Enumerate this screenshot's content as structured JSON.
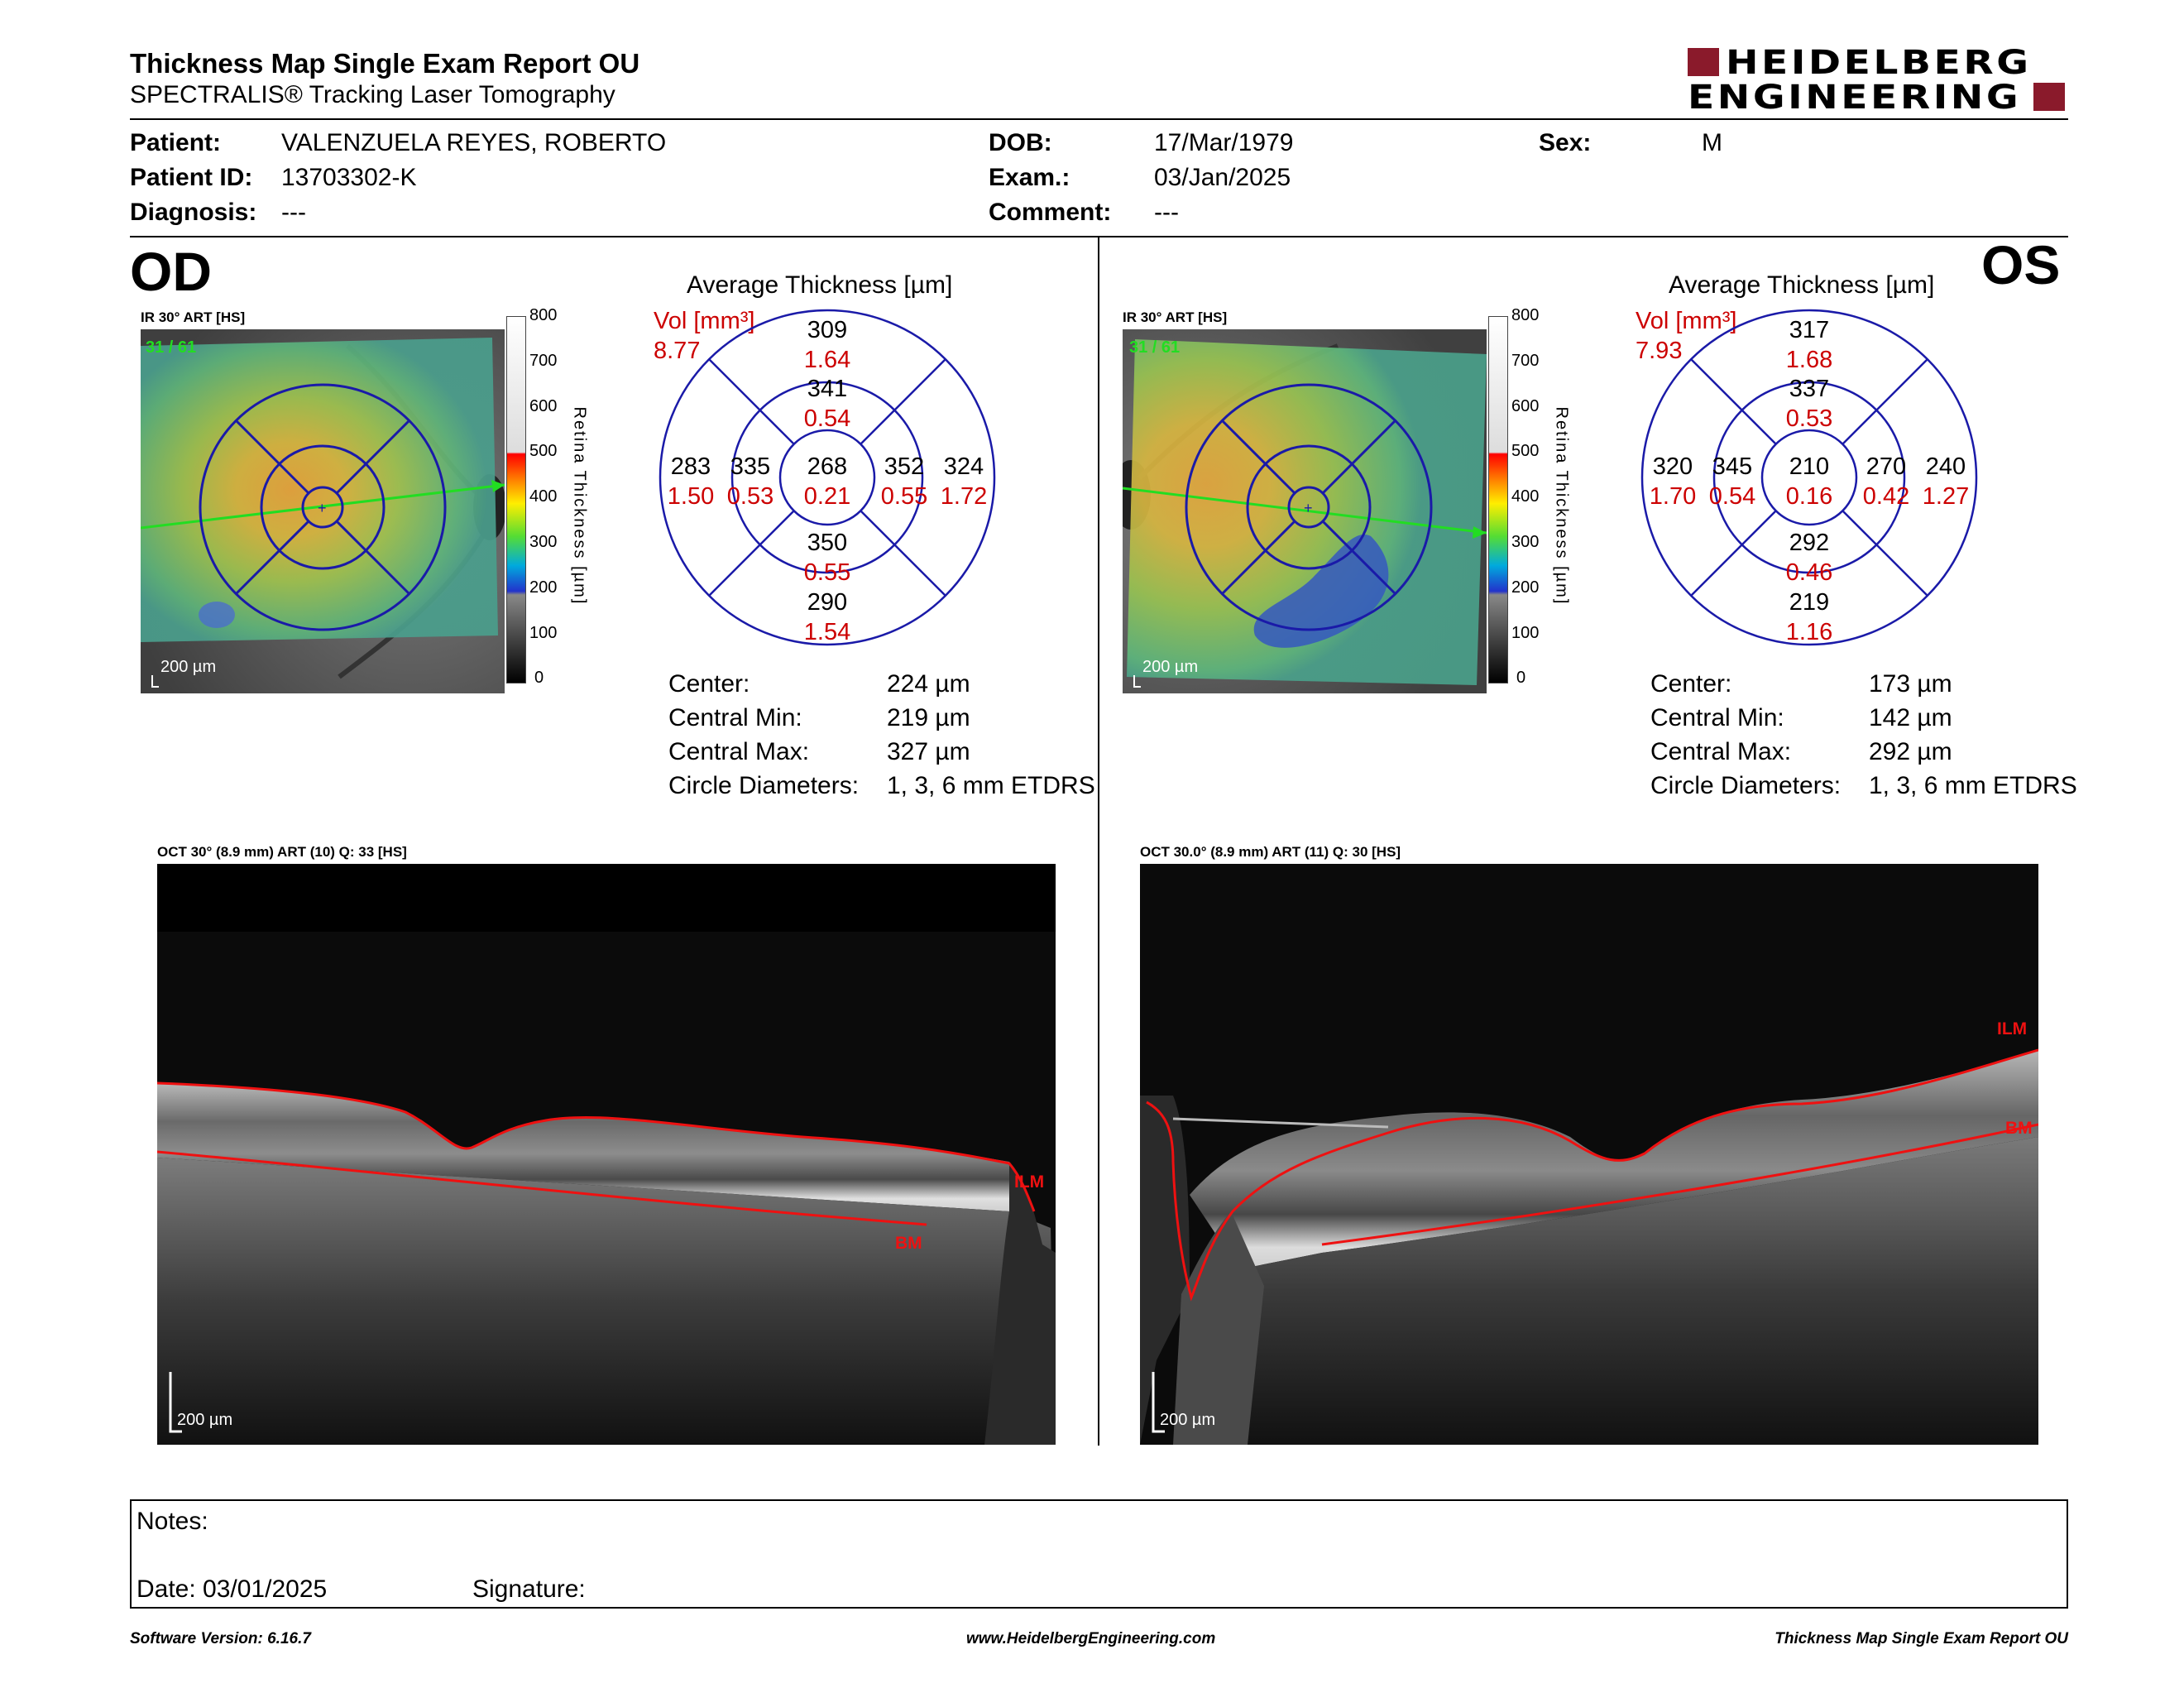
{
  "header": {
    "title": "Thickness Map Single Exam Report OU",
    "subtitle": "SPECTRALIS® Tracking Laser Tomography",
    "logo_line1": "HEIDELBERG",
    "logo_line2": "ENGINEERING"
  },
  "patient": {
    "patient_label": "Patient:",
    "patient_value": "VALENZUELA REYES, ROBERTO",
    "id_label": "Patient ID:",
    "id_value": "13703302-K",
    "diagnosis_label": "Diagnosis:",
    "diagnosis_value": "---",
    "dob_label": "DOB:",
    "dob_value": "17/Mar/1979",
    "exam_label": "Exam.:",
    "exam_value": "03/Jan/2025",
    "comment_label": "Comment:",
    "comment_value": "---",
    "sex_label": "Sex:",
    "sex_value": "M"
  },
  "colorbar": {
    "ticks": [
      "800",
      "700",
      "600",
      "500",
      "400",
      "300",
      "200",
      "100",
      "0"
    ],
    "title": "Retina Thickness [µm]"
  },
  "od": {
    "eye": "OD",
    "ir_label": "IR 30° ART [HS]",
    "ir_counter": "31 / 61",
    "ir_scale": "200 µm",
    "grid_title": "Average Thickness [µm]",
    "vol_label": "Vol [mm³]",
    "vol_total": "8.77",
    "sectors": {
      "outer_top": {
        "thickness": "309",
        "volume": "1.64"
      },
      "inner_top": {
        "thickness": "341",
        "volume": "0.54"
      },
      "outer_left": {
        "thickness": "283",
        "volume": "1.50"
      },
      "inner_left": {
        "thickness": "335",
        "volume": "0.53"
      },
      "center": {
        "thickness": "268",
        "volume": "0.21"
      },
      "inner_right": {
        "thickness": "352",
        "volume": "0.55"
      },
      "outer_right": {
        "thickness": "324",
        "volume": "1.72"
      },
      "inner_bottom": {
        "thickness": "350",
        "volume": "0.55"
      },
      "outer_bottom": {
        "thickness": "290",
        "volume": "1.54"
      }
    },
    "stats": [
      {
        "label": "Center:",
        "value": "224 µm"
      },
      {
        "label": "Central Min:",
        "value": "219 µm"
      },
      {
        "label": "Central Max:",
        "value": "327 µm"
      },
      {
        "label": "Circle Diameters:",
        "value": "1, 3, 6 mm ETDRS"
      }
    ],
    "oct_label": "OCT 30° (8.9 mm) ART (10) Q: 33 [HS]",
    "oct_scale": "200 µm",
    "ilm": "ILM",
    "bm": "BM"
  },
  "os": {
    "eye": "OS",
    "ir_label": "IR 30° ART [HS]",
    "ir_counter": "31 / 61",
    "ir_scale": "200 µm",
    "grid_title": "Average Thickness [µm]",
    "vol_label": "Vol [mm³]",
    "vol_total": "7.93",
    "sectors": {
      "outer_top": {
        "thickness": "317",
        "volume": "1.68"
      },
      "inner_top": {
        "thickness": "337",
        "volume": "0.53"
      },
      "outer_left": {
        "thickness": "320",
        "volume": "1.70"
      },
      "inner_left": {
        "thickness": "345",
        "volume": "0.54"
      },
      "center": {
        "thickness": "210",
        "volume": "0.16"
      },
      "inner_right": {
        "thickness": "270",
        "volume": "0.42"
      },
      "outer_right": {
        "thickness": "240",
        "volume": "1.27"
      },
      "inner_bottom": {
        "thickness": "292",
        "volume": "0.46"
      },
      "outer_bottom": {
        "thickness": "219",
        "volume": "1.16"
      }
    },
    "stats": [
      {
        "label": "Center:",
        "value": "173 µm"
      },
      {
        "label": "Central Min:",
        "value": "142 µm"
      },
      {
        "label": "Central Max:",
        "value": "292 µm"
      },
      {
        "label": "Circle Diameters:",
        "value": "1, 3, 6 mm ETDRS"
      }
    ],
    "oct_label": "OCT 30.0° (8.9 mm) ART (11) Q: 30 [HS]",
    "oct_scale": "200 µm",
    "ilm": "ILM",
    "bm": "BM"
  },
  "notes": {
    "notes_label": "Notes:",
    "date_label": "Date: 03/01/2025",
    "signature_label": "Signature:"
  },
  "footer": {
    "software": "Software Version: 6.16.7",
    "website": "www.HeidelbergEngineering.com",
    "report": "Thickness Map Single Exam Report OU"
  },
  "colors": {
    "red": "#cc0000",
    "grid_blue": "#1a1aa8",
    "brand": "#8a1a2b",
    "scan_green": "#22dd22"
  }
}
